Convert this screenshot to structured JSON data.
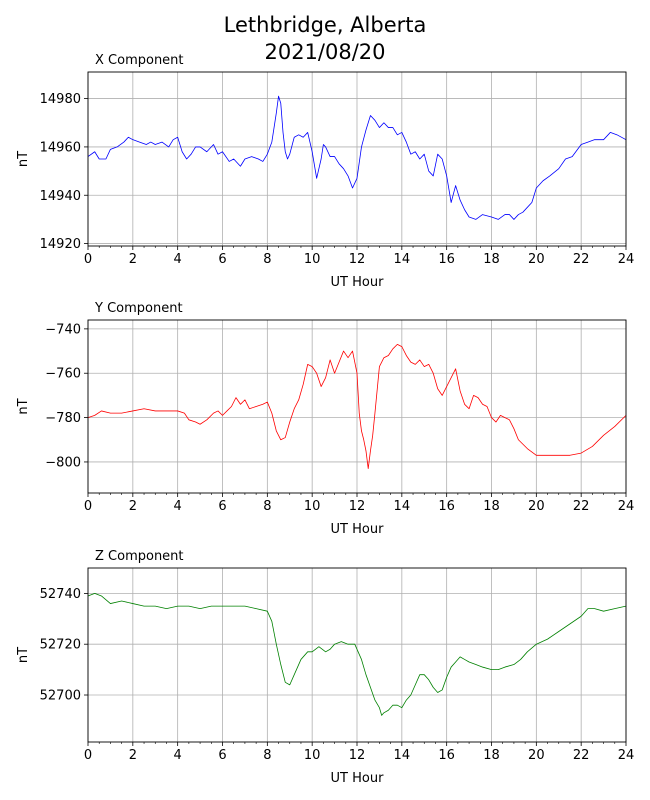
{
  "figure": {
    "title_line1": "Lethbridge, Alberta",
    "title_line2": "2021/08/20"
  },
  "chart_data": [
    {
      "type": "line",
      "title": "X Component",
      "xlabel": "UT Hour",
      "ylabel": "nT",
      "xlim": [
        0,
        24
      ],
      "ylim": [
        14919,
        14991
      ],
      "xticks": [
        0,
        2,
        4,
        6,
        8,
        10,
        12,
        14,
        16,
        18,
        20,
        22,
        24
      ],
      "yticks": [
        14920,
        14940,
        14960,
        14980
      ],
      "grid": true,
      "color": "#0000ff",
      "series": [
        {
          "x": [
            0,
            0.3,
            0.5,
            0.8,
            1.0,
            1.3,
            1.6,
            1.8,
            2.0,
            2.3,
            2.6,
            2.8,
            3.0,
            3.3,
            3.6,
            3.8,
            4.0,
            4.2,
            4.4,
            4.6,
            4.8,
            5.0,
            5.3,
            5.6,
            5.8,
            6.0,
            6.3,
            6.5,
            6.8,
            7.0,
            7.3,
            7.6,
            7.8,
            8.0,
            8.2,
            8.4,
            8.5,
            8.6,
            8.7,
            8.8,
            8.9,
            9.0,
            9.2,
            9.4,
            9.6,
            9.8,
            10.0,
            10.2,
            10.4,
            10.5,
            10.6,
            10.8,
            11.0,
            11.2,
            11.4,
            11.6,
            11.8,
            12.0,
            12.2,
            12.4,
            12.6,
            12.8,
            13.0,
            13.2,
            13.4,
            13.6,
            13.8,
            14.0,
            14.2,
            14.4,
            14.6,
            14.8,
            15.0,
            15.2,
            15.4,
            15.6,
            15.8,
            16.0,
            16.2,
            16.4,
            16.6,
            16.8,
            17.0,
            17.3,
            17.6,
            18.0,
            18.3,
            18.6,
            18.8,
            19.0,
            19.2,
            19.4,
            19.6,
            19.8,
            20.0,
            20.3,
            20.6,
            21.0,
            21.3,
            21.6,
            22.0,
            22.3,
            22.6,
            23.0,
            23.3,
            23.6,
            24.0
          ],
          "y": [
            14956,
            14958,
            14955,
            14955,
            14959,
            14960,
            14962,
            14964,
            14963,
            14962,
            14961,
            14962,
            14961,
            14962,
            14960,
            14963,
            14964,
            14958,
            14955,
            14957,
            14960,
            14960,
            14958,
            14961,
            14957,
            14958,
            14954,
            14955,
            14952,
            14955,
            14956,
            14955,
            14954,
            14957,
            14962,
            14974,
            14981,
            14978,
            14966,
            14958,
            14955,
            14957,
            14964,
            14965,
            14964,
            14966,
            14958,
            14947,
            14955,
            14961,
            14960,
            14956,
            14956,
            14953,
            14951,
            14948,
            14943,
            14947,
            14960,
            14967,
            14973,
            14971,
            14968,
            14970,
            14968,
            14968,
            14965,
            14966,
            14962,
            14957,
            14958,
            14955,
            14957,
            14950,
            14948,
            14957,
            14955,
            14948,
            14937,
            14944,
            14938,
            14934,
            14931,
            14930,
            14932,
            14931,
            14930,
            14932,
            14932,
            14930,
            14932,
            14933,
            14935,
            14937,
            14943,
            14946,
            14948,
            14951,
            14955,
            14956,
            14961,
            14962,
            14963,
            14963,
            14966,
            14965,
            14963
          ]
        }
      ]
    },
    {
      "type": "line",
      "title": "Y Component",
      "xlabel": "UT Hour",
      "ylabel": "nT",
      "xlim": [
        0,
        24
      ],
      "ylim": [
        -814,
        -736
      ],
      "xticks": [
        0,
        2,
        4,
        6,
        8,
        10,
        12,
        14,
        16,
        18,
        20,
        22,
        24
      ],
      "yticks": [
        -800,
        -780,
        -760,
        -740
      ],
      "grid": true,
      "color": "#ff0000",
      "series": [
        {
          "x": [
            0,
            0.3,
            0.6,
            1.0,
            1.5,
            2.0,
            2.5,
            3.0,
            3.5,
            4.0,
            4.3,
            4.5,
            4.8,
            5.0,
            5.3,
            5.6,
            5.8,
            6.0,
            6.2,
            6.4,
            6.6,
            6.8,
            7.0,
            7.2,
            7.5,
            7.8,
            8.0,
            8.2,
            8.4,
            8.6,
            8.8,
            9.0,
            9.2,
            9.4,
            9.6,
            9.8,
            10.0,
            10.2,
            10.4,
            10.6,
            10.8,
            11.0,
            11.2,
            11.4,
            11.6,
            11.8,
            12.0,
            12.1,
            12.2,
            12.3,
            12.4,
            12.5,
            12.6,
            12.7,
            12.8,
            13.0,
            13.2,
            13.4,
            13.6,
            13.8,
            14.0,
            14.2,
            14.4,
            14.6,
            14.8,
            15.0,
            15.2,
            15.4,
            15.6,
            15.8,
            16.0,
            16.2,
            16.4,
            16.6,
            16.8,
            17.0,
            17.2,
            17.4,
            17.6,
            17.8,
            18.0,
            18.2,
            18.4,
            18.6,
            18.8,
            19.0,
            19.2,
            19.6,
            20.0,
            20.5,
            21.0,
            21.5,
            22.0,
            22.5,
            23.0,
            23.5,
            24.0
          ],
          "y": [
            -780,
            -779,
            -777,
            -778,
            -778,
            -777,
            -776,
            -777,
            -777,
            -777,
            -778,
            -781,
            -782,
            -783,
            -781,
            -778,
            -777,
            -779,
            -777,
            -775,
            -771,
            -774,
            -772,
            -776,
            -775,
            -774,
            -773,
            -778,
            -786,
            -790,
            -789,
            -782,
            -776,
            -772,
            -765,
            -756,
            -757,
            -760,
            -766,
            -762,
            -754,
            -760,
            -755,
            -750,
            -753,
            -750,
            -760,
            -778,
            -786,
            -790,
            -795,
            -803,
            -795,
            -788,
            -778,
            -757,
            -753,
            -752,
            -749,
            -747,
            -748,
            -752,
            -755,
            -756,
            -754,
            -757,
            -756,
            -760,
            -767,
            -770,
            -766,
            -762,
            -758,
            -768,
            -774,
            -776,
            -770,
            -771,
            -774,
            -775,
            -780,
            -782,
            -779,
            -780,
            -781,
            -785,
            -790,
            -794,
            -797,
            -797,
            -797,
            -797,
            -796,
            -793,
            -788,
            -784,
            -779
          ]
        }
      ]
    },
    {
      "type": "line",
      "title": "Z Component",
      "xlabel": "UT Hour",
      "ylabel": "nT",
      "xlim": [
        0,
        24
      ],
      "ylim": [
        52681.5,
        52750
      ],
      "xticks": [
        0,
        2,
        4,
        6,
        8,
        10,
        12,
        14,
        16,
        18,
        20,
        22,
        24
      ],
      "yticks": [
        52700,
        52720,
        52740
      ],
      "grid": true,
      "color": "#008000",
      "series": [
        {
          "x": [
            0,
            0.3,
            0.6,
            1.0,
            1.5,
            2.0,
            2.5,
            3.0,
            3.5,
            4.0,
            4.5,
            5.0,
            5.5,
            6.0,
            6.5,
            7.0,
            7.5,
            8.0,
            8.2,
            8.4,
            8.6,
            8.8,
            9.0,
            9.2,
            9.5,
            9.8,
            10.0,
            10.3,
            10.6,
            10.8,
            11.0,
            11.3,
            11.6,
            11.9,
            12.2,
            12.4,
            12.6,
            12.8,
            13.0,
            13.1,
            13.2,
            13.4,
            13.6,
            13.8,
            14.0,
            14.2,
            14.4,
            14.6,
            14.8,
            15.0,
            15.2,
            15.4,
            15.6,
            15.8,
            16.0,
            16.2,
            16.4,
            16.6,
            16.8,
            17.0,
            17.3,
            17.6,
            18.0,
            18.3,
            18.6,
            19.0,
            19.3,
            19.6,
            20.0,
            20.5,
            21.0,
            21.5,
            22.0,
            22.3,
            22.6,
            23.0,
            23.5,
            24.0
          ],
          "y": [
            52739,
            52740,
            52739,
            52736,
            52737,
            52736,
            52735,
            52735,
            52734,
            52735,
            52735,
            52734,
            52735,
            52735,
            52735,
            52735,
            52734,
            52733,
            52729,
            52720,
            52712,
            52705,
            52704,
            52708,
            52714,
            52717,
            52717,
            52719,
            52717,
            52718,
            52720,
            52721,
            52720,
            52720,
            52714,
            52708,
            52703,
            52698,
            52695,
            52692,
            52693,
            52694,
            52696,
            52696,
            52695,
            52698,
            52700,
            52704,
            52708,
            52708,
            52706,
            52703,
            52701,
            52702,
            52707,
            52711,
            52713,
            52715,
            52714,
            52713,
            52712,
            52711,
            52710,
            52710,
            52711,
            52712,
            52714,
            52717,
            52720,
            52722,
            52725,
            52728,
            52731,
            52734,
            52734,
            52733,
            52734,
            52735
          ]
        }
      ]
    }
  ]
}
